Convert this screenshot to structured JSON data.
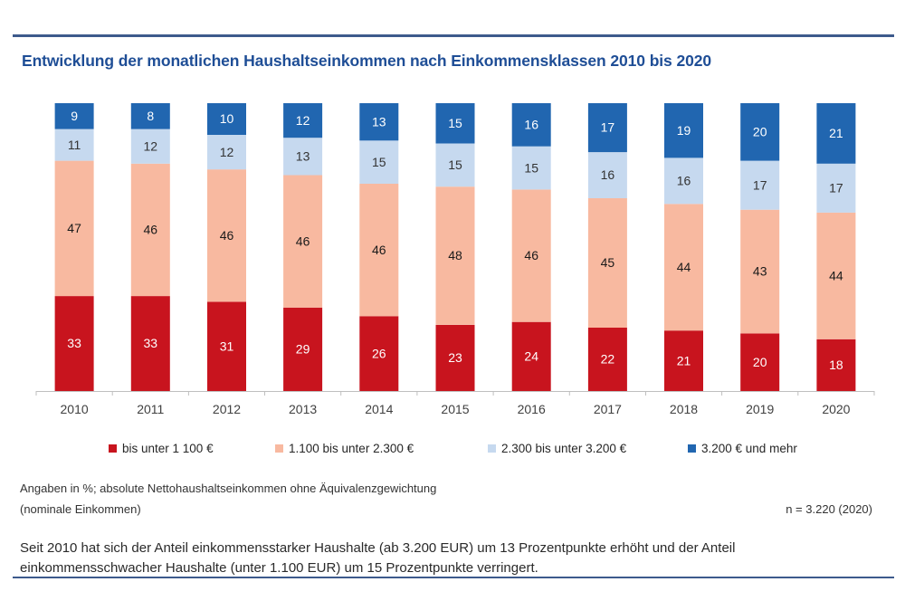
{
  "chart_data": {
    "type": "bar",
    "stacked": true,
    "title": "Entwicklung der monatlichen Haushaltseinkommen nach Einkommensklassen 2010 bis 2020",
    "xlabel": "",
    "ylabel": "",
    "ylim": [
      0,
      100
    ],
    "grid": false,
    "legend_position": "bottom",
    "categories": [
      "2010",
      "2011",
      "2012",
      "2013",
      "2014",
      "2015",
      "2016",
      "2017",
      "2018",
      "2019",
      "2020"
    ],
    "series": [
      {
        "name": "bis unter 1 100 €",
        "color": "#c8141e",
        "label_color": "#ffffff",
        "values": [
          33,
          33,
          31,
          29,
          26,
          23,
          24,
          22,
          21,
          20,
          18
        ]
      },
      {
        "name": "1.100 bis unter 2.300 €",
        "color": "#f8b9a0",
        "label_color": "#1a1a1a",
        "values": [
          47,
          46,
          46,
          46,
          46,
          48,
          46,
          45,
          44,
          43,
          44
        ]
      },
      {
        "name": "2.300 bis unter 3.200 €",
        "color": "#c6d9ef",
        "label_color": "#333333",
        "values": [
          11,
          12,
          12,
          13,
          15,
          15,
          15,
          16,
          16,
          17,
          17
        ]
      },
      {
        "name": "3.200 € und mehr",
        "color": "#2166b0",
        "label_color": "#ffffff",
        "values": [
          9,
          8,
          10,
          12,
          13,
          15,
          16,
          17,
          19,
          20,
          21
        ]
      }
    ]
  },
  "notes": {
    "line1": "Angaben in %; absolute Nettohaushaltseinkommen ohne Äquivalenzgewichtung",
    "line2": "(nominale Einkommen)",
    "sample_size": "n = 3.220 (2020)"
  },
  "summary": {
    "line1": "Seit 2010 hat sich der Anteil einkommensstarker Haushalte (ab 3.200 EUR) um 13 Prozentpunkte erhöht und der Anteil",
    "line2": "einkommensschwacher Haushalte (unter 1.100 EUR) um 15 Prozentpunkte verringert."
  },
  "colors": {
    "title": "#1f4e96",
    "rule": "#3d5a8c"
  }
}
